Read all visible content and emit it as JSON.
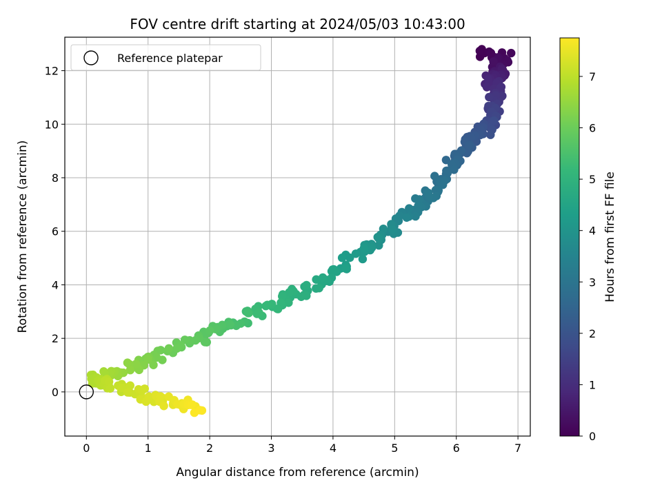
{
  "chart_data": {
    "type": "scatter",
    "title": "FOV centre drift starting at 2024/05/03 10:43:00",
    "xlabel": "Angular distance from reference (arcmin)",
    "ylabel": "Rotation from reference (arcmin)",
    "xlim": [
      -0.35,
      7.2
    ],
    "ylim": [
      -1.65,
      13.25
    ],
    "x_ticks": [
      0,
      1,
      2,
      3,
      4,
      5,
      6,
      7
    ],
    "y_ticks": [
      0,
      2,
      4,
      6,
      8,
      10,
      12
    ],
    "grid": true,
    "legend": {
      "placement": "top-left",
      "entries": [
        "Reference platepar"
      ]
    },
    "colorbar": {
      "label": "Hours from first FF file",
      "colormap": "viridis",
      "range": [
        0,
        7.75
      ],
      "ticks": [
        0,
        1,
        2,
        3,
        4,
        5,
        6,
        7
      ]
    },
    "reference_point": {
      "name": "Reference platepar",
      "x": 0,
      "y": 0
    },
    "path_points": [
      {
        "x": 6.35,
        "y": 12.6,
        "h": 0.0
      },
      {
        "x": 6.8,
        "y": 12.5,
        "h": 0.15
      },
      {
        "x": 6.6,
        "y": 12.2,
        "h": 0.3
      },
      {
        "x": 6.75,
        "y": 11.9,
        "h": 0.55
      },
      {
        "x": 6.55,
        "y": 11.6,
        "h": 0.8
      },
      {
        "x": 6.7,
        "y": 11.2,
        "h": 1.05
      },
      {
        "x": 6.6,
        "y": 10.8,
        "h": 1.3
      },
      {
        "x": 6.62,
        "y": 10.3,
        "h": 1.6
      },
      {
        "x": 6.5,
        "y": 9.9,
        "h": 1.85
      },
      {
        "x": 6.3,
        "y": 9.5,
        "h": 2.1
      },
      {
        "x": 6.1,
        "y": 9.0,
        "h": 2.35
      },
      {
        "x": 5.95,
        "y": 8.5,
        "h": 2.6
      },
      {
        "x": 5.75,
        "y": 7.9,
        "h": 2.85
      },
      {
        "x": 5.55,
        "y": 7.3,
        "h": 3.1
      },
      {
        "x": 5.3,
        "y": 6.8,
        "h": 3.35
      },
      {
        "x": 5.0,
        "y": 6.2,
        "h": 3.65
      },
      {
        "x": 4.7,
        "y": 5.6,
        "h": 3.95
      },
      {
        "x": 4.3,
        "y": 5.0,
        "h": 4.25
      },
      {
        "x": 3.9,
        "y": 4.3,
        "h": 4.55
      },
      {
        "x": 3.5,
        "y": 3.8,
        "h": 4.85
      },
      {
        "x": 3.1,
        "y": 3.3,
        "h": 5.1
      },
      {
        "x": 2.6,
        "y": 2.8,
        "h": 5.35
      },
      {
        "x": 2.2,
        "y": 2.4,
        "h": 5.6
      },
      {
        "x": 1.7,
        "y": 1.9,
        "h": 5.85
      },
      {
        "x": 1.2,
        "y": 1.4,
        "h": 6.1
      },
      {
        "x": 0.8,
        "y": 1.0,
        "h": 6.35
      },
      {
        "x": 0.4,
        "y": 0.7,
        "h": 6.6
      },
      {
        "x": 0.15,
        "y": 0.5,
        "h": 6.8
      },
      {
        "x": 0.3,
        "y": 0.3,
        "h": 6.95
      },
      {
        "x": 0.7,
        "y": 0.1,
        "h": 7.15
      },
      {
        "x": 1.1,
        "y": -0.2,
        "h": 7.35
      },
      {
        "x": 1.5,
        "y": -0.4,
        "h": 7.55
      },
      {
        "x": 1.85,
        "y": -0.6,
        "h": 7.75
      }
    ],
    "point_count_approx": 420
  }
}
